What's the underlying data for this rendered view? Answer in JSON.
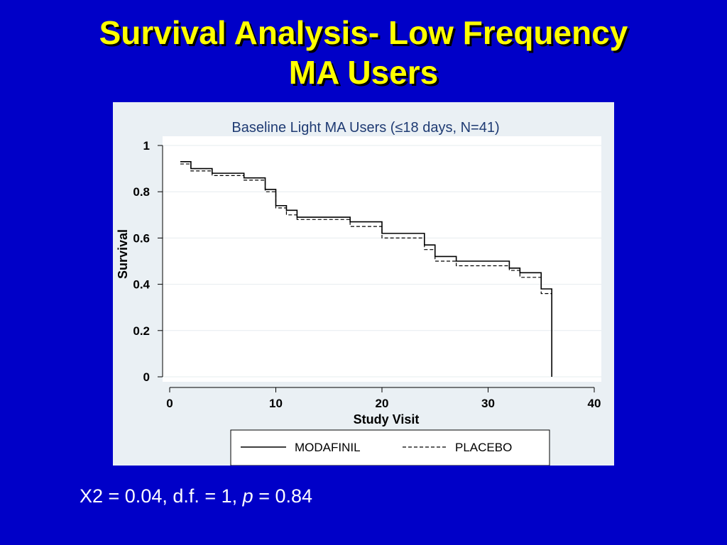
{
  "slide": {
    "title_line1": "Survival Analysis- Low Frequency",
    "title_line2": "MA Users"
  },
  "stats": {
    "prefix": "X2 = 0.04, d.f. = 1, ",
    "p_symbol": "p",
    "suffix": " = 0.84"
  },
  "colors": {
    "background": "#0000c8",
    "title": "#ffff00",
    "stats_text": "#ffffff",
    "chart_panel": "#eaf0f4",
    "title_in_chart": "#1f3b73"
  },
  "chart_data": {
    "type": "line",
    "step": true,
    "title": "Baseline Light MA Users (≤18 days, N=41)",
    "xlabel": "Study Visit",
    "ylabel": "Survival",
    "xlim": [
      0,
      40
    ],
    "ylim": [
      0,
      1
    ],
    "xticks": [
      0,
      10,
      20,
      30,
      40
    ],
    "yticks": [
      0,
      0.2,
      0.4,
      0.6,
      0.8,
      1
    ],
    "ytick_labels": [
      "0",
      "0.2",
      "0.4",
      "0.6",
      "0.8",
      "1"
    ],
    "grid": true,
    "legend_position": "bottom",
    "series": [
      {
        "name": "MODAFINIL",
        "dash": "solid",
        "x": [
          1,
          2,
          4,
          7,
          9,
          10,
          11,
          12,
          17,
          20,
          24,
          25,
          27,
          32,
          33,
          35,
          36,
          36
        ],
        "y": [
          0.93,
          0.9,
          0.88,
          0.86,
          0.81,
          0.74,
          0.72,
          0.69,
          0.67,
          0.62,
          0.57,
          0.52,
          0.5,
          0.47,
          0.45,
          0.38,
          0.38,
          0
        ]
      },
      {
        "name": "PLACEBO",
        "dash": "dashed",
        "x": [
          1,
          2,
          4,
          7,
          9,
          10,
          11,
          12,
          17,
          20,
          24,
          25,
          27,
          32,
          33,
          35,
          36,
          36
        ],
        "y": [
          0.92,
          0.89,
          0.87,
          0.85,
          0.8,
          0.73,
          0.7,
          0.68,
          0.65,
          0.6,
          0.55,
          0.5,
          0.48,
          0.46,
          0.43,
          0.36,
          0.36,
          0
        ]
      }
    ]
  }
}
